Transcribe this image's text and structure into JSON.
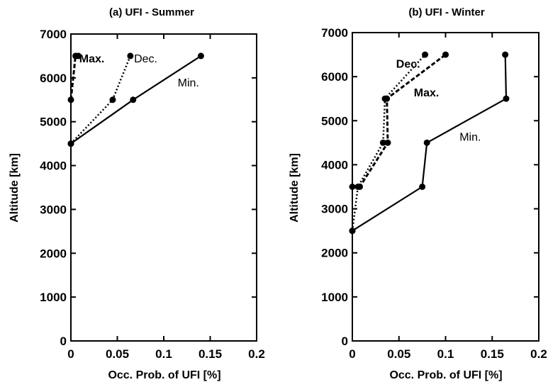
{
  "chart_data": [
    {
      "type": "line",
      "title": "(a) UFI - Summer",
      "xlabel": "Occ. Prob. of UFI [%]",
      "ylabel": "Altitude [km]",
      "xlim": [
        0,
        0.2
      ],
      "ylim": [
        0,
        7000
      ],
      "xticks": [
        "0",
        "0.05",
        "0.1",
        "0.15",
        "0.2"
      ],
      "yticks": [
        "0",
        "1000",
        "2000",
        "3000",
        "4000",
        "5000",
        "6000",
        "7000"
      ],
      "grid": false,
      "series": [
        {
          "name": "Min.",
          "style": "solid",
          "x": [
            0.0,
            0.067,
            0.14
          ],
          "y": [
            4500,
            5500,
            6500
          ]
        },
        {
          "name": "Dec.",
          "style": "dotted",
          "x": [
            0.0,
            0.045,
            0.064
          ],
          "y": [
            4500,
            5500,
            6500
          ]
        },
        {
          "name": "Max.",
          "style": "dashed",
          "x": [
            0.0,
            0.005,
            0.008
          ],
          "y": [
            5500,
            6500,
            6500
          ]
        }
      ],
      "annotations": [
        {
          "text": "Max.",
          "x": 0.009,
          "y": 6350,
          "bold": true
        },
        {
          "text": "Dec.",
          "x": 0.068,
          "y": 6350,
          "bold": false
        },
        {
          "text": "Min.",
          "x": 0.115,
          "y": 5800,
          "bold": false
        }
      ]
    },
    {
      "type": "line",
      "title": "(b) UFI - Winter",
      "xlabel": "Occ. Prob. of UFI [%]",
      "ylabel": "Altitude [km]",
      "xlim": [
        0,
        0.2
      ],
      "ylim": [
        0,
        7000
      ],
      "xticks": [
        "0",
        "0.05",
        "0.1",
        "0.15",
        "0.2"
      ],
      "yticks": [
        "0",
        "1000",
        "2000",
        "3000",
        "4000",
        "5000",
        "6000",
        "7000"
      ],
      "grid": false,
      "series": [
        {
          "name": "Min.",
          "style": "solid",
          "x": [
            0.0,
            0.075,
            0.08,
            0.165,
            0.164
          ],
          "y": [
            2500,
            3500,
            4500,
            5500,
            6500
          ]
        },
        {
          "name": "Dec.",
          "style": "dotted",
          "x": [
            0.0,
            0.006,
            0.033,
            0.035,
            0.078
          ],
          "y": [
            2500,
            3500,
            4500,
            5500,
            6500
          ]
        },
        {
          "name": "Max.",
          "style": "dashed",
          "x": [
            0.0,
            0.008,
            0.038,
            0.037,
            0.1
          ],
          "y": [
            3500,
            3500,
            4500,
            5500,
            6500
          ]
        }
      ],
      "annotations": [
        {
          "text": "Dec.",
          "x": 0.047,
          "y": 6200,
          "bold": true
        },
        {
          "text": "Max.",
          "x": 0.066,
          "y": 5550,
          "bold": true
        },
        {
          "text": "Min.",
          "x": 0.115,
          "y": 4550,
          "bold": false
        }
      ]
    }
  ]
}
